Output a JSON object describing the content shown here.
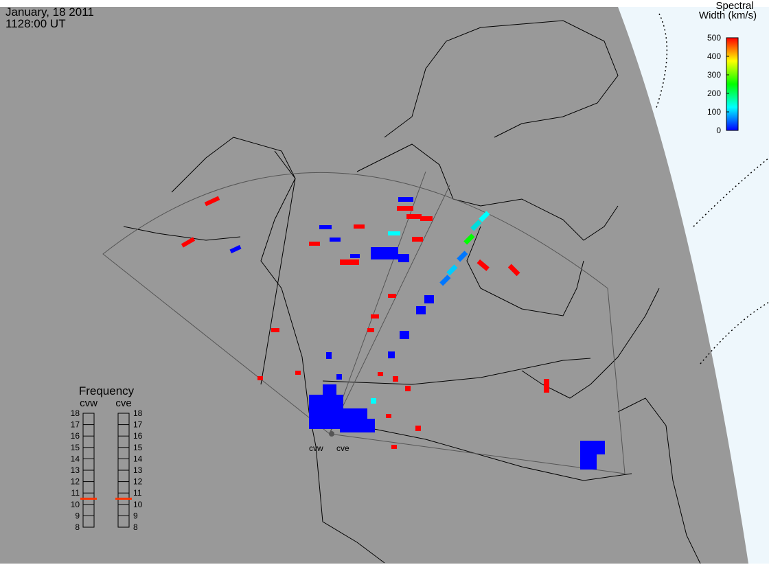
{
  "header": {
    "date": "January, 18 2011",
    "time": "1128:00 UT"
  },
  "colorbar": {
    "title": [
      "Spectral",
      "Width (km/s)"
    ],
    "lim": [
      0,
      500
    ],
    "ticks": [
      0,
      100,
      200,
      300,
      400,
      500
    ],
    "colors": [
      "#0000ff",
      "#00ffff",
      "#00ff00",
      "#ffff00",
      "#ff0000"
    ]
  },
  "frequency": {
    "title": "Frequency",
    "lim": [
      8,
      18
    ],
    "ticks": [
      8,
      9,
      10,
      11,
      12,
      13,
      14,
      15,
      16,
      17,
      18
    ],
    "radars": [
      {
        "name": "cvw",
        "value": 10.5
      },
      {
        "name": "cve",
        "value": 10.5
      }
    ],
    "marker_color": "#ff3300"
  },
  "sites": [
    "cvw",
    "cve"
  ]
}
